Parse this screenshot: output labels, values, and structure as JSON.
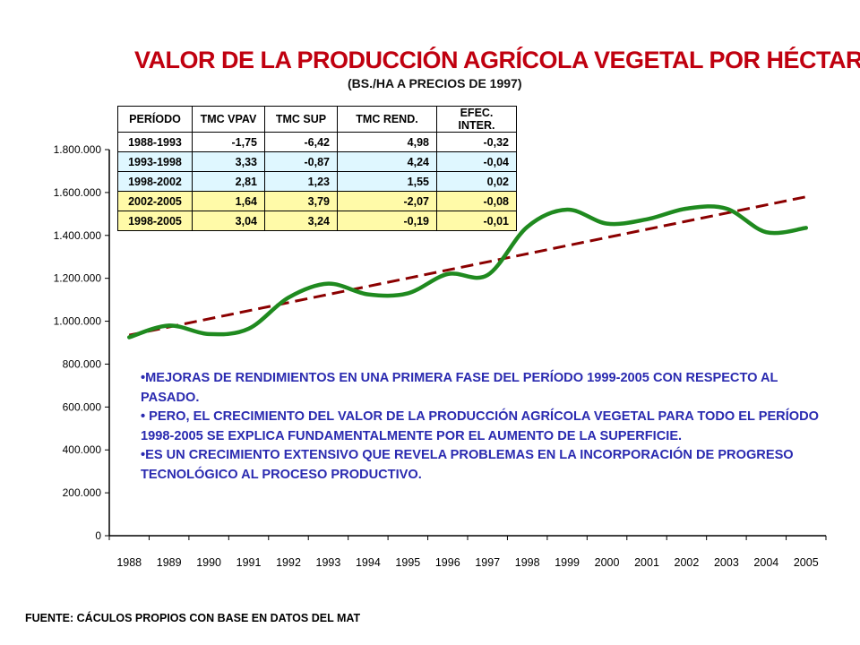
{
  "title": "VALOR DE LA PRODUCCIÓN AGRÍCOLA VEGETAL POR HÉCTAREA",
  "subtitle": "(BS./HA A PRECIOS DE 1997)",
  "table": {
    "headers": [
      "PERÍODO",
      "TMC VPAV",
      "TMC SUP",
      "TMC REND.",
      "EFEC. INTER."
    ],
    "rows": [
      [
        "1988-1993",
        "-1,75",
        "-6,42",
        "4,98",
        "-0,32"
      ],
      [
        "1993-1998",
        "3,33",
        "-0,87",
        "4,24",
        "-0,04"
      ],
      [
        "1998-2002",
        "2,81",
        "1,23",
        "1,55",
        "0,02"
      ],
      [
        "2002-2005",
        "1,64",
        "3,79",
        "-2,07",
        "-0,08"
      ],
      [
        "1998-2005",
        "3,04",
        "3,24",
        "-0,19",
        "-0,01"
      ]
    ]
  },
  "notes": [
    "•MEJORAS DE RENDIMIENTOS EN UNA PRIMERA FASE DEL PERÍODO 1999-2005 CON RESPECTO AL PASADO.",
    "• PERO, EL CRECIMIENTO DEL VALOR DE LA PRODUCCIÓN AGRÍCOLA VEGETAL PARA TODO EL PERÍODO 1998-2005 SE EXPLICA FUNDAMENTALMENTE POR EL AUMENTO DE LA SUPERFICIE.",
    "•ES UN CRECIMIENTO EXTENSIVO QUE REVELA PROBLEMAS EN LA INCORPORACIÓN DE PROGRESO TECNOLÓGICO AL PROCESO PRODUCTIVO."
  ],
  "source": "FUENTE: CÁCULOS PROPIOS CON BASE EN DATOS DEL MAT",
  "colors": {
    "title": "#c0000f",
    "series_line": "#1f8a1f",
    "trend_line": "#8b0000",
    "notes_text": "#2a2ab0",
    "table_blue": "#dff7ff",
    "table_yellow": "#fffaa8"
  },
  "chart_data": {
    "type": "line",
    "x": [
      1988,
      1989,
      1990,
      1991,
      1992,
      1993,
      1994,
      1995,
      1996,
      1997,
      1998,
      1999,
      2000,
      2001,
      2002,
      2003,
      2004,
      2005
    ],
    "xticklabels": [
      "1988",
      "1989",
      "1990",
      "1991",
      "1992",
      "1993",
      "1994",
      "1995",
      "1996",
      "1997",
      "1998",
      "1999",
      "2000",
      "2001",
      "2002",
      "2003",
      "2004",
      "2005"
    ],
    "yticklabels": [
      "0",
      "200.000",
      "400.000",
      "600.000",
      "800.000",
      "1.000.000",
      "1.200.000",
      "1.400.000",
      "1.600.000",
      "1.800.000"
    ],
    "yticks": [
      0,
      200000,
      400000,
      600000,
      800000,
      1000000,
      1200000,
      1400000,
      1600000,
      1800000
    ],
    "ylim": [
      0,
      1800000
    ],
    "series": [
      {
        "values": [
          925000,
          980000,
          940000,
          965000,
          1110000,
          1175000,
          1125000,
          1130000,
          1220000,
          1215000,
          1440000,
          1520000,
          1455000,
          1475000,
          1525000,
          1525000,
          1415000,
          1435000
        ]
      },
      {
        "values": [
          935000,
          973000,
          1011000,
          1049000,
          1087000,
          1125000,
          1163000,
          1201000,
          1239000,
          1277000,
          1315000,
          1353000,
          1391000,
          1429000,
          1467000,
          1505000,
          1543000,
          1580000
        ]
      }
    ],
    "trendline": true,
    "grid": false,
    "legend": "none",
    "xlabel": "",
    "ylabel": ""
  }
}
